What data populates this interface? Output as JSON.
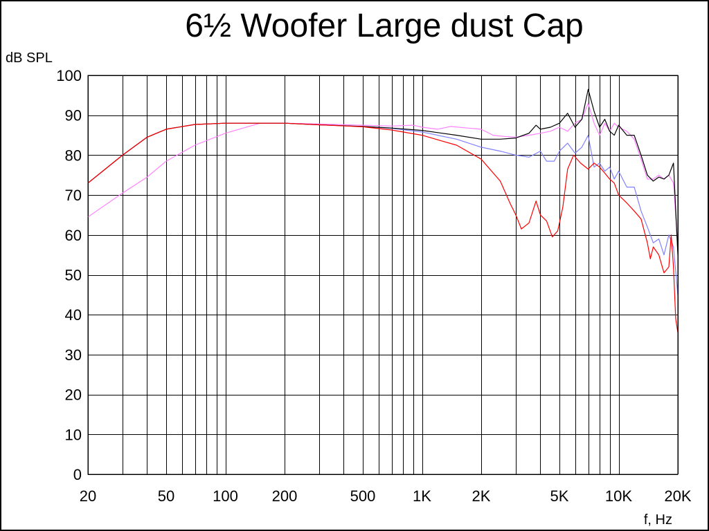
{
  "chart_data": {
    "type": "line",
    "title": "6½ Woofer Large dust Cap",
    "ylabel": "dB SPL",
    "xlabel": "f, Hz",
    "x_scale": "log",
    "xlim": [
      20,
      20000
    ],
    "ylim": [
      0,
      100
    ],
    "grid": true,
    "x_ticks": [
      20,
      50,
      100,
      200,
      500,
      1000,
      2000,
      5000,
      10000,
      20000
    ],
    "x_tick_labels": [
      "20",
      "50",
      "100",
      "200",
      "500",
      "1K",
      "2K",
      "5K",
      "10K",
      "20K"
    ],
    "x_minor_gridlines": [
      20,
      30,
      40,
      50,
      60,
      70,
      80,
      90,
      100,
      200,
      300,
      400,
      500,
      600,
      700,
      800,
      900,
      1000,
      2000,
      3000,
      4000,
      5000,
      6000,
      7000,
      8000,
      9000,
      10000,
      20000
    ],
    "y_ticks": [
      0,
      10,
      20,
      30,
      40,
      50,
      60,
      70,
      80,
      90,
      100
    ],
    "series": [
      {
        "color": "#ff80ff",
        "points": [
          [
            20,
            64.5
          ],
          [
            30,
            70.5
          ],
          [
            40,
            74.5
          ],
          [
            50,
            78.5
          ],
          [
            70,
            82.5
          ],
          [
            100,
            85.5
          ],
          [
            150,
            88
          ],
          [
            200,
            88
          ],
          [
            300,
            87.8
          ],
          [
            500,
            87.5
          ],
          [
            700,
            87.3
          ],
          [
            900,
            87.5
          ],
          [
            1000,
            87
          ],
          [
            1200,
            86.5
          ],
          [
            1400,
            87.2
          ],
          [
            1700,
            86.8
          ],
          [
            2000,
            86.5
          ],
          [
            2300,
            85
          ],
          [
            2600,
            84.7
          ],
          [
            3000,
            84.5
          ],
          [
            3500,
            85
          ],
          [
            4000,
            85.5
          ],
          [
            4500,
            86
          ],
          [
            5000,
            87
          ],
          [
            5500,
            86
          ],
          [
            6000,
            88
          ],
          [
            6500,
            89
          ],
          [
            7000,
            93
          ],
          [
            7500,
            88
          ],
          [
            8000,
            85
          ],
          [
            8500,
            88
          ],
          [
            9000,
            86
          ],
          [
            9500,
            88
          ],
          [
            10000,
            87
          ],
          [
            11000,
            86
          ],
          [
            12000,
            84
          ],
          [
            13000,
            79
          ],
          [
            14000,
            74
          ],
          [
            15000,
            74
          ],
          [
            16000,
            75
          ],
          [
            17000,
            74
          ],
          [
            18000,
            75
          ],
          [
            19000,
            73
          ],
          [
            20000,
            57
          ]
        ]
      },
      {
        "color": "#8080ff",
        "points": [
          [
            20,
            73
          ],
          [
            30,
            80
          ],
          [
            40,
            84.5
          ],
          [
            50,
            86.5
          ],
          [
            70,
            87.7
          ],
          [
            100,
            88
          ],
          [
            150,
            88
          ],
          [
            200,
            88
          ],
          [
            300,
            87.6
          ],
          [
            500,
            87.2
          ],
          [
            700,
            86.7
          ],
          [
            1000,
            85.8
          ],
          [
            1500,
            84
          ],
          [
            2000,
            82
          ],
          [
            2500,
            81
          ],
          [
            3000,
            80
          ],
          [
            3500,
            79.5
          ],
          [
            4000,
            81
          ],
          [
            4300,
            78.5
          ],
          [
            4700,
            78.5
          ],
          [
            5000,
            81
          ],
          [
            5500,
            83
          ],
          [
            6000,
            80.5
          ],
          [
            6500,
            82
          ],
          [
            7000,
            85
          ],
          [
            7500,
            77
          ],
          [
            8000,
            78
          ],
          [
            8500,
            76
          ],
          [
            9000,
            77
          ],
          [
            9500,
            74
          ],
          [
            10000,
            76
          ],
          [
            11000,
            72
          ],
          [
            12000,
            72
          ],
          [
            13000,
            66
          ],
          [
            14000,
            62
          ],
          [
            15000,
            58
          ],
          [
            16000,
            59
          ],
          [
            17000,
            55
          ],
          [
            18000,
            60
          ],
          [
            19000,
            57
          ],
          [
            20000,
            45
          ]
        ]
      },
      {
        "color": "#000000",
        "points": [
          [
            20,
            73
          ],
          [
            30,
            80
          ],
          [
            40,
            84.5
          ],
          [
            50,
            86.5
          ],
          [
            70,
            87.7
          ],
          [
            100,
            88
          ],
          [
            150,
            88
          ],
          [
            200,
            88
          ],
          [
            300,
            87.6
          ],
          [
            500,
            87.2
          ],
          [
            700,
            86.8
          ],
          [
            1000,
            86.2
          ],
          [
            1500,
            85
          ],
          [
            2000,
            84
          ],
          [
            2500,
            84
          ],
          [
            3000,
            84.3
          ],
          [
            3500,
            85.5
          ],
          [
            3800,
            87.5
          ],
          [
            4000,
            86.5
          ],
          [
            4500,
            87
          ],
          [
            5000,
            88
          ],
          [
            5500,
            90.5
          ],
          [
            6000,
            87
          ],
          [
            6500,
            89
          ],
          [
            7000,
            96.5
          ],
          [
            7500,
            91
          ],
          [
            8000,
            87
          ],
          [
            8500,
            89
          ],
          [
            9000,
            86
          ],
          [
            9500,
            85
          ],
          [
            10000,
            87.5
          ],
          [
            11000,
            85
          ],
          [
            12000,
            85
          ],
          [
            13000,
            80
          ],
          [
            14000,
            75
          ],
          [
            15000,
            73.5
          ],
          [
            16000,
            74.5
          ],
          [
            17000,
            74
          ],
          [
            18000,
            75
          ],
          [
            19000,
            78
          ],
          [
            20000,
            55
          ]
        ]
      },
      {
        "color": "#ff0000",
        "points": [
          [
            20,
            73
          ],
          [
            30,
            80
          ],
          [
            40,
            84.5
          ],
          [
            50,
            86.5
          ],
          [
            70,
            87.7
          ],
          [
            100,
            88
          ],
          [
            150,
            88
          ],
          [
            200,
            88
          ],
          [
            300,
            87.6
          ],
          [
            500,
            87.1
          ],
          [
            700,
            86.3
          ],
          [
            1000,
            85
          ],
          [
            1500,
            82.5
          ],
          [
            2000,
            79
          ],
          [
            2500,
            73.5
          ],
          [
            2800,
            68
          ],
          [
            3000,
            65
          ],
          [
            3200,
            61.5
          ],
          [
            3500,
            63
          ],
          [
            3800,
            68.5
          ],
          [
            4000,
            65
          ],
          [
            4300,
            63.5
          ],
          [
            4600,
            59.5
          ],
          [
            4900,
            61
          ],
          [
            5200,
            67
          ],
          [
            5500,
            76.5
          ],
          [
            5900,
            80
          ],
          [
            6400,
            78
          ],
          [
            7000,
            76.5
          ],
          [
            7500,
            78
          ],
          [
            8000,
            77
          ],
          [
            8500,
            75.5
          ],
          [
            9000,
            74
          ],
          [
            9500,
            73
          ],
          [
            10000,
            70
          ],
          [
            11000,
            68
          ],
          [
            12000,
            66
          ],
          [
            13000,
            64
          ],
          [
            14000,
            58
          ],
          [
            14500,
            54
          ],
          [
            15000,
            57
          ],
          [
            16000,
            55
          ],
          [
            17000,
            50.5
          ],
          [
            18000,
            52
          ],
          [
            18500,
            60
          ],
          [
            19000,
            52
          ],
          [
            19500,
            39
          ],
          [
            20000,
            35.5
          ]
        ]
      }
    ]
  }
}
